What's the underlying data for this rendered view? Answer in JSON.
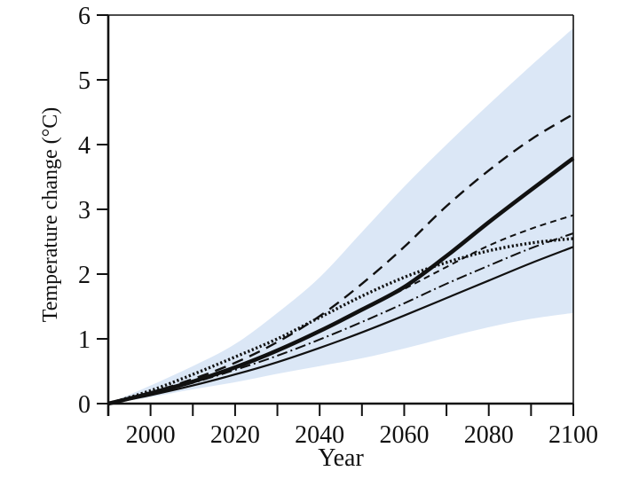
{
  "window": {
    "background": "#ffffff"
  },
  "colors": {
    "band": "#dbe7f6",
    "line": "#111111",
    "axis": "#111111"
  },
  "chart_data": {
    "type": "line",
    "title": "",
    "xlabel": "Year",
    "ylabel": "Temperature change (°C)",
    "x_range": [
      1990,
      2100
    ],
    "y_range": [
      0,
      6
    ],
    "grid": false,
    "legend_position": "none",
    "x_minor_tick_step": 10,
    "x_tick_labels": [
      "2000",
      "2020",
      "2040",
      "2060",
      "2080",
      "2100"
    ],
    "x_labeled_ticks": [
      2000,
      2020,
      2040,
      2060,
      2080,
      2100
    ],
    "y_tick_labels": [
      "0",
      "1",
      "2",
      "3",
      "4",
      "5",
      "6"
    ],
    "y_ticks": [
      0,
      1,
      2,
      3,
      4,
      5,
      6
    ],
    "x": [
      1990,
      2000,
      2010,
      2020,
      2030,
      2040,
      2050,
      2060,
      2070,
      2080,
      2090,
      2100
    ],
    "series": [
      {
        "name": "highest-long-dash-scenario",
        "style": "long-dash",
        "stroke_width": 2.4,
        "values": [
          0,
          0.17,
          0.38,
          0.63,
          0.95,
          1.35,
          1.85,
          2.42,
          3.05,
          3.6,
          4.08,
          4.47
        ]
      },
      {
        "name": "thick-solid-scenario",
        "style": "solid",
        "stroke_width": 4.6,
        "values": [
          0,
          0.16,
          0.34,
          0.56,
          0.82,
          1.12,
          1.45,
          1.8,
          2.28,
          2.8,
          3.3,
          3.79
        ]
      },
      {
        "name": "short-dash-scenario",
        "style": "short-dash",
        "stroke_width": 2.0,
        "values": [
          0,
          0.16,
          0.35,
          0.57,
          0.83,
          1.12,
          1.44,
          1.77,
          2.11,
          2.44,
          2.7,
          2.91
        ]
      },
      {
        "name": "dash-dot-scenario",
        "style": "dash-dot",
        "stroke_width": 2.0,
        "values": [
          0,
          0.15,
          0.32,
          0.52,
          0.74,
          0.99,
          1.26,
          1.55,
          1.85,
          2.13,
          2.4,
          2.63
        ]
      },
      {
        "name": "thin-solid-scenario",
        "style": "solid",
        "stroke_width": 2.2,
        "values": [
          0,
          0.13,
          0.28,
          0.45,
          0.64,
          0.86,
          1.1,
          1.36,
          1.63,
          1.9,
          2.17,
          2.42
        ]
      },
      {
        "name": "bold-dotted-scenario",
        "style": "bold-dotted",
        "stroke_width": 3.4,
        "values": [
          0,
          0.2,
          0.45,
          0.72,
          1.0,
          1.33,
          1.66,
          1.95,
          2.18,
          2.36,
          2.48,
          2.55
        ]
      }
    ],
    "envelope": {
      "name": "uncertainty-envelope",
      "fill": "#dbe7f6",
      "upper": [
        0,
        0.28,
        0.58,
        0.92,
        1.4,
        1.95,
        2.65,
        3.35,
        4.0,
        4.62,
        5.22,
        5.8
      ],
      "lower": [
        0,
        0.1,
        0.22,
        0.33,
        0.46,
        0.58,
        0.7,
        0.85,
        1.02,
        1.18,
        1.31,
        1.4
      ]
    }
  }
}
